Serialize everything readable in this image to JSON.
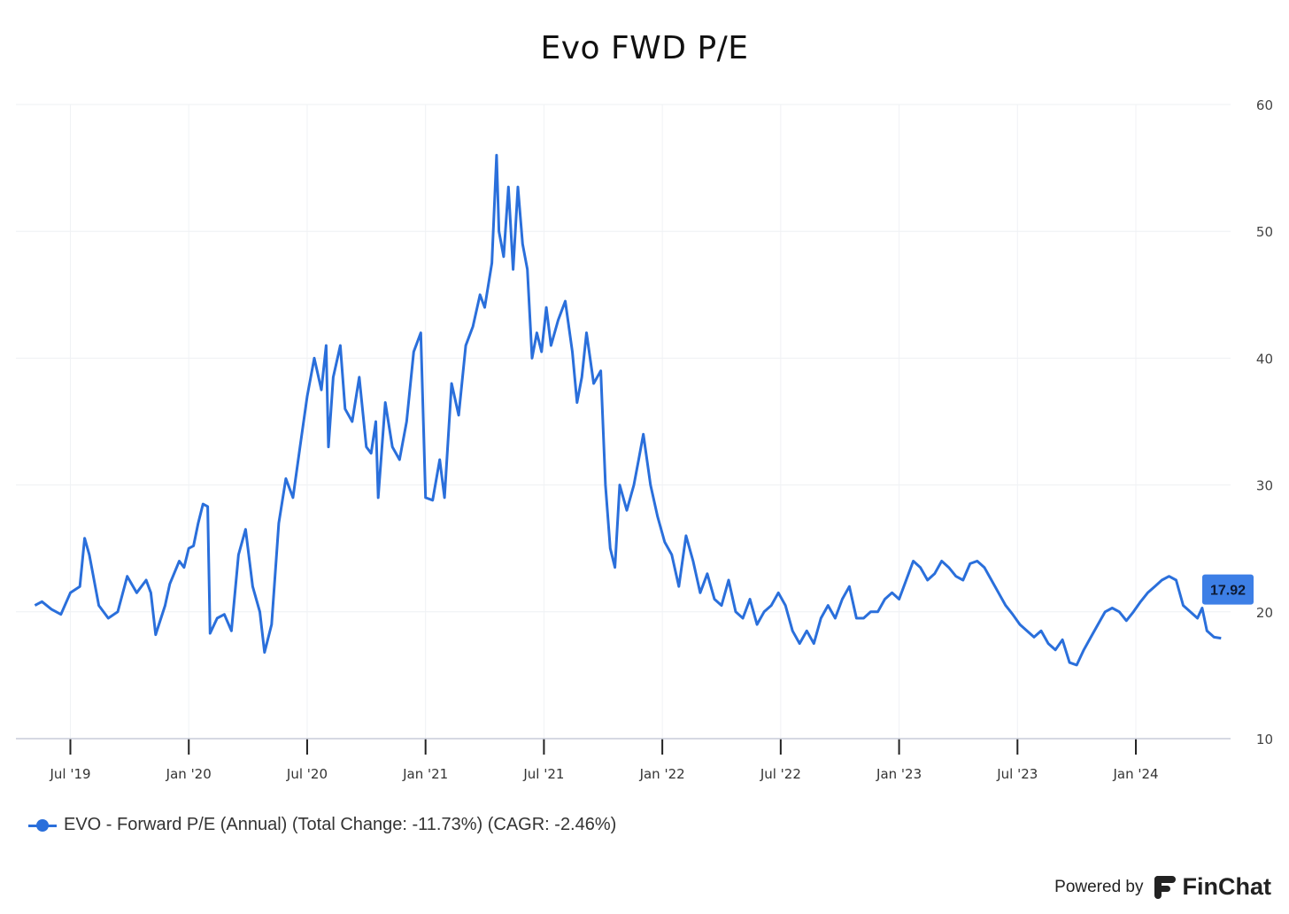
{
  "chart_data": {
    "type": "line",
    "title": "Evo FWD P/E",
    "xlabel": "",
    "ylabel": "",
    "ylim": [
      10,
      60
    ],
    "yticks": [
      10,
      20,
      30,
      40,
      50,
      60
    ],
    "x_range": [
      "2019-05",
      "2024-09"
    ],
    "xticks": [
      {
        "label": "Jul '19",
        "t": 2019.5
      },
      {
        "label": "Jan '20",
        "t": 2020.0
      },
      {
        "label": "Jul '20",
        "t": 2020.5
      },
      {
        "label": "Jan '21",
        "t": 2021.0
      },
      {
        "label": "Jul '21",
        "t": 2021.5
      },
      {
        "label": "Jan '22",
        "t": 2022.0
      },
      {
        "label": "Jul '22",
        "t": 2022.5
      },
      {
        "label": "Jan '23",
        "t": 2023.0
      },
      {
        "label": "Jul '23",
        "t": 2023.5
      },
      {
        "label": "Jan '24",
        "t": 2024.0
      }
    ],
    "grid": true,
    "series": [
      {
        "name": "EVO - Forward P/E (Annual) (Total Change: -11.73%) (CAGR: -2.46%)",
        "color": "#2a6fdb",
        "last_value": "17.92",
        "points": [
          [
            2019.35,
            20.5
          ],
          [
            2019.38,
            20.8
          ],
          [
            2019.42,
            20.2
          ],
          [
            2019.46,
            19.8
          ],
          [
            2019.5,
            21.5
          ],
          [
            2019.54,
            22.0
          ],
          [
            2019.56,
            25.8
          ],
          [
            2019.58,
            24.5
          ],
          [
            2019.62,
            20.5
          ],
          [
            2019.66,
            19.5
          ],
          [
            2019.7,
            20.0
          ],
          [
            2019.74,
            22.8
          ],
          [
            2019.78,
            21.5
          ],
          [
            2019.82,
            22.5
          ],
          [
            2019.84,
            21.5
          ],
          [
            2019.86,
            18.2
          ],
          [
            2019.9,
            20.5
          ],
          [
            2019.92,
            22.2
          ],
          [
            2019.96,
            24.0
          ],
          [
            2019.98,
            23.5
          ],
          [
            2020.0,
            25.0
          ],
          [
            2020.02,
            25.2
          ],
          [
            2020.04,
            27.0
          ],
          [
            2020.06,
            28.5
          ],
          [
            2020.08,
            28.3
          ],
          [
            2020.09,
            18.3
          ],
          [
            2020.12,
            19.5
          ],
          [
            2020.15,
            19.8
          ],
          [
            2020.18,
            18.5
          ],
          [
            2020.21,
            24.5
          ],
          [
            2020.24,
            26.5
          ],
          [
            2020.27,
            22.0
          ],
          [
            2020.3,
            20.0
          ],
          [
            2020.32,
            16.8
          ],
          [
            2020.35,
            19.0
          ],
          [
            2020.38,
            27.0
          ],
          [
            2020.41,
            30.5
          ],
          [
            2020.44,
            29.0
          ],
          [
            2020.47,
            33.0
          ],
          [
            2020.5,
            37.0
          ],
          [
            2020.53,
            40.0
          ],
          [
            2020.56,
            37.5
          ],
          [
            2020.58,
            41.0
          ],
          [
            2020.59,
            33.0
          ],
          [
            2020.61,
            38.5
          ],
          [
            2020.64,
            41.0
          ],
          [
            2020.66,
            36.0
          ],
          [
            2020.69,
            35.0
          ],
          [
            2020.72,
            38.5
          ],
          [
            2020.75,
            33.0
          ],
          [
            2020.77,
            32.5
          ],
          [
            2020.79,
            35.0
          ],
          [
            2020.8,
            29.0
          ],
          [
            2020.83,
            36.5
          ],
          [
            2020.86,
            33.0
          ],
          [
            2020.89,
            32.0
          ],
          [
            2020.92,
            35.0
          ],
          [
            2020.95,
            40.5
          ],
          [
            2020.98,
            42.0
          ],
          [
            2021.0,
            29.0
          ],
          [
            2021.03,
            28.8
          ],
          [
            2021.06,
            32.0
          ],
          [
            2021.08,
            29.0
          ],
          [
            2021.11,
            38.0
          ],
          [
            2021.14,
            35.5
          ],
          [
            2021.17,
            41.0
          ],
          [
            2021.2,
            42.5
          ],
          [
            2021.23,
            45.0
          ],
          [
            2021.25,
            44.0
          ],
          [
            2021.28,
            47.5
          ],
          [
            2021.3,
            56.0
          ],
          [
            2021.31,
            50.0
          ],
          [
            2021.33,
            48.0
          ],
          [
            2021.35,
            53.5
          ],
          [
            2021.37,
            47.0
          ],
          [
            2021.39,
            53.5
          ],
          [
            2021.41,
            49.0
          ],
          [
            2021.43,
            47.0
          ],
          [
            2021.45,
            40.0
          ],
          [
            2021.47,
            42.0
          ],
          [
            2021.49,
            40.5
          ],
          [
            2021.51,
            44.0
          ],
          [
            2021.53,
            41.0
          ],
          [
            2021.56,
            43.0
          ],
          [
            2021.59,
            44.5
          ],
          [
            2021.62,
            40.5
          ],
          [
            2021.64,
            36.5
          ],
          [
            2021.66,
            38.5
          ],
          [
            2021.68,
            42.0
          ],
          [
            2021.71,
            38.0
          ],
          [
            2021.74,
            39.0
          ],
          [
            2021.76,
            30.0
          ],
          [
            2021.78,
            25.0
          ],
          [
            2021.8,
            23.5
          ],
          [
            2021.82,
            30.0
          ],
          [
            2021.85,
            28.0
          ],
          [
            2021.88,
            30.0
          ],
          [
            2021.9,
            32.0
          ],
          [
            2021.92,
            34.0
          ],
          [
            2021.95,
            30.0
          ],
          [
            2021.98,
            27.5
          ],
          [
            2022.01,
            25.5
          ],
          [
            2022.04,
            24.5
          ],
          [
            2022.07,
            22.0
          ],
          [
            2022.1,
            26.0
          ],
          [
            2022.13,
            24.0
          ],
          [
            2022.16,
            21.5
          ],
          [
            2022.19,
            23.0
          ],
          [
            2022.22,
            21.0
          ],
          [
            2022.25,
            20.5
          ],
          [
            2022.28,
            22.5
          ],
          [
            2022.31,
            20.0
          ],
          [
            2022.34,
            19.5
          ],
          [
            2022.37,
            21.0
          ],
          [
            2022.4,
            19.0
          ],
          [
            2022.43,
            20.0
          ],
          [
            2022.46,
            20.5
          ],
          [
            2022.49,
            21.5
          ],
          [
            2022.52,
            20.5
          ],
          [
            2022.55,
            18.5
          ],
          [
            2022.58,
            17.5
          ],
          [
            2022.61,
            18.5
          ],
          [
            2022.64,
            17.5
          ],
          [
            2022.67,
            19.5
          ],
          [
            2022.7,
            20.5
          ],
          [
            2022.73,
            19.5
          ],
          [
            2022.76,
            21.0
          ],
          [
            2022.79,
            22.0
          ],
          [
            2022.82,
            19.5
          ],
          [
            2022.85,
            19.5
          ],
          [
            2022.88,
            20.0
          ],
          [
            2022.91,
            20.0
          ],
          [
            2022.94,
            21.0
          ],
          [
            2022.97,
            21.5
          ],
          [
            2023.0,
            21.0
          ],
          [
            2023.03,
            22.5
          ],
          [
            2023.06,
            24.0
          ],
          [
            2023.09,
            23.5
          ],
          [
            2023.12,
            22.5
          ],
          [
            2023.15,
            23.0
          ],
          [
            2023.18,
            24.0
          ],
          [
            2023.21,
            23.5
          ],
          [
            2023.24,
            22.8
          ],
          [
            2023.27,
            22.5
          ],
          [
            2023.3,
            23.8
          ],
          [
            2023.33,
            24.0
          ],
          [
            2023.36,
            23.5
          ],
          [
            2023.39,
            22.5
          ],
          [
            2023.42,
            21.5
          ],
          [
            2023.45,
            20.5
          ],
          [
            2023.48,
            19.8
          ],
          [
            2023.51,
            19.0
          ],
          [
            2023.54,
            18.5
          ],
          [
            2023.57,
            18.0
          ],
          [
            2023.6,
            18.5
          ],
          [
            2023.63,
            17.5
          ],
          [
            2023.66,
            17.0
          ],
          [
            2023.69,
            17.8
          ],
          [
            2023.72,
            16.0
          ],
          [
            2023.75,
            15.8
          ],
          [
            2023.78,
            17.0
          ],
          [
            2023.81,
            18.0
          ],
          [
            2023.84,
            19.0
          ],
          [
            2023.87,
            20.0
          ],
          [
            2023.9,
            20.3
          ],
          [
            2023.93,
            20.0
          ],
          [
            2023.96,
            19.3
          ],
          [
            2023.99,
            20.0
          ],
          [
            2024.02,
            20.8
          ],
          [
            2024.05,
            21.5
          ],
          [
            2024.08,
            22.0
          ],
          [
            2024.11,
            22.5
          ],
          [
            2024.14,
            22.8
          ],
          [
            2024.17,
            22.5
          ],
          [
            2024.2,
            20.5
          ],
          [
            2024.23,
            20.0
          ],
          [
            2024.26,
            19.5
          ],
          [
            2024.28,
            20.3
          ],
          [
            2024.3,
            18.5
          ],
          [
            2024.33,
            18.0
          ],
          [
            2024.36,
            17.92
          ]
        ]
      }
    ]
  },
  "legend": {
    "label": "EVO - Forward P/E (Annual) (Total Change: -11.73%) (CAGR: -2.46%)"
  },
  "footer": {
    "powered_by": "Powered by",
    "brand": "FinChat"
  }
}
